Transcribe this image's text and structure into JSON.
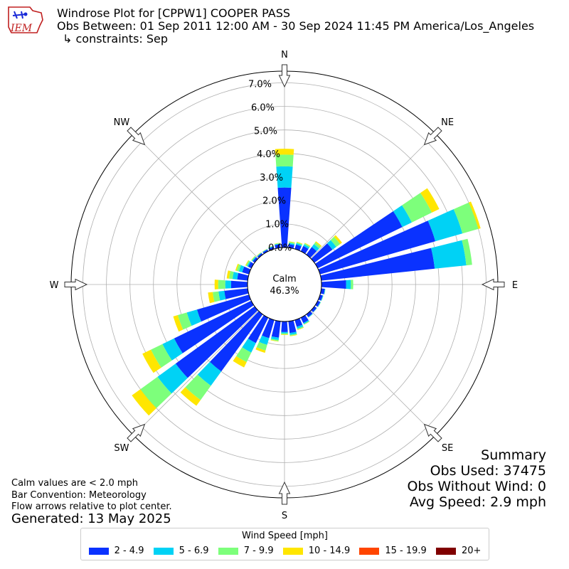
{
  "header": {
    "title": "Windrose Plot for [CPPW1] COOPER PASS",
    "obs_between": "Obs Between: 01 Sep 2011 12:00 AM - 30 Sep 2024 11:45 PM America/Los_Angeles",
    "constraints": "↳ constraints: Sep"
  },
  "logo": {
    "text": "IEM"
  },
  "notes": {
    "calm_def": "Calm values are < 2.0 mph",
    "bar_convention": "Bar Convention: Meteorology",
    "flow_arrows": "Flow arrows relative to plot center.",
    "generated": "Generated: 13 May 2025"
  },
  "summary": {
    "title": "Summary",
    "obs_used": "Obs Used: 37475",
    "obs_without_wind": "Obs Without Wind: 0",
    "avg_speed": "Avg Speed: 2.9 mph"
  },
  "chart_data": {
    "type": "windrose",
    "calm_label": "Calm",
    "calm_value": "46.3%",
    "radial_ticks": [
      "0.0%",
      "1.0%",
      "2.0%",
      "3.0%",
      "4.0%",
      "5.0%",
      "6.0%",
      "7.0%"
    ],
    "radial_max": 7.5,
    "directions": [
      "N",
      "NE",
      "E",
      "SE",
      "S",
      "SW",
      "W",
      "NW"
    ],
    "legend_title": "Wind Speed [mph]",
    "bins": [
      {
        "label": "2 - 4.9",
        "color": "#0a32ff"
      },
      {
        "label": "5 - 6.9",
        "color": "#00d2f5"
      },
      {
        "label": "7 - 9.9",
        "color": "#7dff7b"
      },
      {
        "label": "10 - 14.9",
        "color": "#ffe600"
      },
      {
        "label": "15 - 19.9",
        "color": "#ff4500"
      },
      {
        "label": "20+",
        "color": "#800000"
      }
    ],
    "sectors": [
      {
        "dir": 0,
        "cum": [
          2.55,
          3.45,
          3.95,
          4.2
        ]
      },
      {
        "dir": 10,
        "cum": [
          0.15,
          0.2,
          0.25,
          0.27
        ]
      },
      {
        "dir": 20,
        "cum": [
          0.2,
          0.26,
          0.3,
          0.32
        ]
      },
      {
        "dir": 30,
        "cum": [
          0.25,
          0.33,
          0.38,
          0.4
        ]
      },
      {
        "dir": 40,
        "cum": [
          0.4,
          0.55,
          0.65,
          0.7
        ]
      },
      {
        "dir": 50,
        "cum": [
          0.95,
          1.15,
          1.35,
          1.45
        ]
      },
      {
        "dir": 60,
        "cum": [
          4.0,
          4.45,
          5.4,
          5.75
        ]
      },
      {
        "dir": 70,
        "cum": [
          5.1,
          6.3,
          7.0,
          7.1
        ]
      },
      {
        "dir": 80,
        "cum": [
          4.85,
          6.2,
          6.45,
          6.45
        ]
      },
      {
        "dir": 90,
        "cum": [
          1.05,
          1.25,
          1.35,
          1.35
        ]
      },
      {
        "dir": 100,
        "cum": [
          0.15,
          0.17,
          0.18,
          0.18
        ]
      },
      {
        "dir": 110,
        "cum": [
          0.12,
          0.14,
          0.15,
          0.15
        ]
      },
      {
        "dir": 120,
        "cum": [
          0.12,
          0.14,
          0.15,
          0.15
        ]
      },
      {
        "dir": 130,
        "cum": [
          0.12,
          0.13,
          0.14,
          0.14
        ]
      },
      {
        "dir": 140,
        "cum": [
          0.14,
          0.16,
          0.17,
          0.17
        ]
      },
      {
        "dir": 150,
        "cum": [
          0.25,
          0.3,
          0.32,
          0.33
        ]
      },
      {
        "dir": 160,
        "cum": [
          0.3,
          0.38,
          0.42,
          0.44
        ]
      },
      {
        "dir": 170,
        "cum": [
          0.5,
          0.58,
          0.62,
          0.64
        ]
      },
      {
        "dir": 180,
        "cum": [
          0.45,
          0.5,
          0.55,
          0.57
        ]
      },
      {
        "dir": 190,
        "cum": [
          0.7,
          0.8,
          0.85,
          0.87
        ]
      },
      {
        "dir": 200,
        "cum": [
          0.8,
          1.1,
          1.35,
          1.45
        ]
      },
      {
        "dir": 210,
        "cum": [
          1.2,
          1.65,
          2.1,
          2.35
        ]
      },
      {
        "dir": 220,
        "cum": [
          3.0,
          3.75,
          4.5,
          4.8
        ]
      },
      {
        "dir": 230,
        "cum": [
          4.15,
          5.1,
          6.0,
          6.45
        ]
      },
      {
        "dir": 240,
        "cum": [
          3.65,
          4.2,
          4.75,
          5.15
        ]
      },
      {
        "dir": 250,
        "cum": [
          2.3,
          2.75,
          3.15,
          3.35
        ]
      },
      {
        "dir": 260,
        "cum": [
          1.0,
          1.25,
          1.5,
          1.7
        ]
      },
      {
        "dir": 270,
        "cum": [
          0.7,
          0.95,
          1.25,
          1.4
        ]
      },
      {
        "dir": 280,
        "cum": [
          0.45,
          0.65,
          0.8,
          0.9
        ]
      },
      {
        "dir": 290,
        "cum": [
          0.3,
          0.45,
          0.55,
          0.6
        ]
      },
      {
        "dir": 300,
        "cum": [
          0.15,
          0.2,
          0.25,
          0.28
        ]
      },
      {
        "dir": 310,
        "cum": [
          0.1,
          0.14,
          0.17,
          0.18
        ]
      },
      {
        "dir": 320,
        "cum": [
          0.08,
          0.1,
          0.12,
          0.13
        ]
      },
      {
        "dir": 330,
        "cum": [
          0.08,
          0.1,
          0.11,
          0.12
        ]
      },
      {
        "dir": 340,
        "cum": [
          0.1,
          0.13,
          0.14,
          0.15
        ]
      },
      {
        "dir": 350,
        "cum": [
          0.15,
          0.18,
          0.2,
          0.21
        ]
      }
    ]
  }
}
